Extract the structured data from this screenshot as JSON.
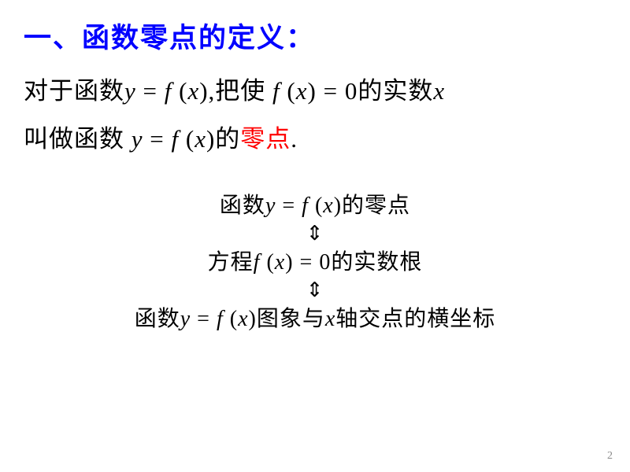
{
  "heading": "一、函数零点的定义：",
  "line1_part1": "对于函数",
  "line1_yeq": "y",
  "line1_eq": " = ",
  "line1_f": "f ",
  "line1_open": "(",
  "line1_x": "x",
  "line1_close": ")",
  "line1_part2": ",把使 ",
  "line1_f2": "f ",
  "line1_open2": "(",
  "line1_x2": "x",
  "line1_close2": ") ",
  "line1_eq2": "= ",
  "line1_zero": "0",
  "line1_part3": "的实数",
  "line1_x3": "x",
  "line2_part1": "叫做函数 ",
  "line2_y": "y",
  "line2_eq": " =  ",
  "line2_f": "f ",
  "line2_open": "(",
  "line2_x": "x",
  "line2_close": ")",
  "line2_part2": "的",
  "line2_zero_pt": "零点",
  "line2_period": ".",
  "c1_part1": "函数",
  "c1_y": "y",
  "c1_eq": " = ",
  "c1_f": "f ",
  "c1_open": "(",
  "c1_x": "x",
  "c1_close": ")",
  "c1_part2": "的零点",
  "arrow1": "⇕",
  "c2_part1": "方程",
  "c2_f": "f ",
  "c2_open": "(",
  "c2_x": "x",
  "c2_close": ") ",
  "c2_eq": "= ",
  "c2_zero": "0",
  "c2_part2": "的实数根",
  "arrow2": "⇕",
  "c3_part1": "函数",
  "c3_y": "y",
  "c3_eq": " = ",
  "c3_f": "f ",
  "c3_open": "(",
  "c3_x": "x",
  "c3_close": ")",
  "c3_part2": "图象与",
  "c3_x2": "x",
  "c3_part3": "轴交点的横坐标",
  "page_num": "2"
}
